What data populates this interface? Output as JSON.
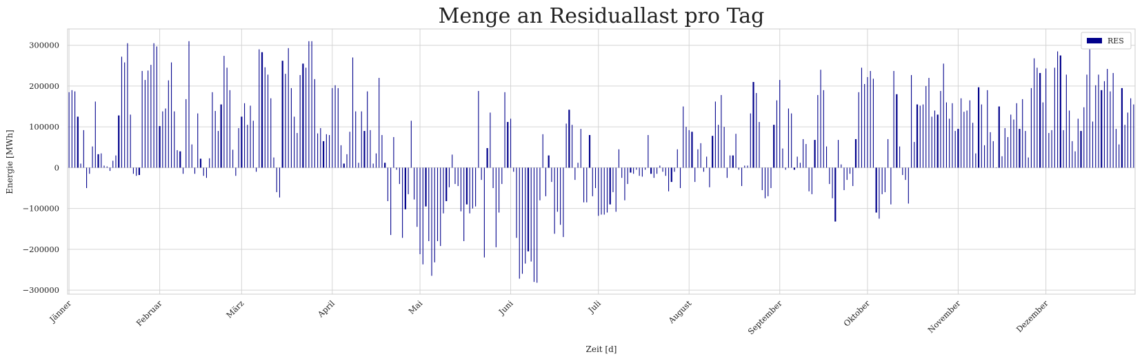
{
  "chart_data": {
    "type": "bar",
    "title": "Menge an Residuallast pro Tag",
    "xlabel": "Zeit [d]",
    "ylabel": "Energie [MWh]",
    "ylim": [
      -310000,
      340000
    ],
    "yticks": [
      -300000,
      -200000,
      -100000,
      0,
      100000,
      200000,
      300000
    ],
    "grid": true,
    "legend_position": "top-right",
    "bar_color": "#00008B",
    "months": [
      {
        "label": "Jänner",
        "start_day": 0
      },
      {
        "label": "Februar",
        "start_day": 31
      },
      {
        "label": "März",
        "start_day": 59
      },
      {
        "label": "April",
        "start_day": 90
      },
      {
        "label": "Mai",
        "start_day": 120
      },
      {
        "label": "Juni",
        "start_day": 151
      },
      {
        "label": "Juli",
        "start_day": 181
      },
      {
        "label": "August",
        "start_day": 212
      },
      {
        "label": "September",
        "start_day": 243
      },
      {
        "label": "Oktober",
        "start_day": 273
      },
      {
        "label": "November",
        "start_day": 304
      },
      {
        "label": "Dezember",
        "start_day": 334
      }
    ],
    "series": [
      {
        "name": "RES",
        "values": [
          185000,
          190000,
          187000,
          125000,
          10000,
          92000,
          -50000,
          -15000,
          52000,
          162000,
          33000,
          35000,
          5000,
          3000,
          -8000,
          17000,
          30000,
          128000,
          272000,
          258000,
          305000,
          130000,
          -15000,
          -20000,
          -18000,
          237000,
          215000,
          238000,
          252000,
          305000,
          297000,
          102000,
          138000,
          145000,
          214000,
          258000,
          138000,
          43000,
          40000,
          -15000,
          168000,
          310000,
          57000,
          -15000,
          133000,
          22000,
          -20000,
          -25000,
          23000,
          185000,
          139000,
          90000,
          155000,
          274000,
          245000,
          190000,
          44000,
          -20000,
          97000,
          125000,
          158000,
          105000,
          152000,
          115000,
          -10000,
          290000,
          283000,
          246000,
          228000,
          170000,
          25000,
          -60000,
          -73000,
          262000,
          230000,
          293000,
          195000,
          125000,
          85000,
          227000,
          255000,
          245000,
          310000,
          310000,
          217000,
          84000,
          97000,
          65000,
          82000,
          80000,
          195000,
          202000,
          195000,
          55000,
          10000,
          33000,
          88000,
          270000,
          138000,
          12000,
          138000,
          90000,
          187000,
          92000,
          10000,
          35000,
          220000,
          80000,
          12000,
          -82000,
          -165000,
          75000,
          -5000,
          -40000,
          -172000,
          -102000,
          -65000,
          115000,
          -78000,
          -145000,
          -212000,
          -237000,
          -95000,
          -180000,
          -265000,
          -232000,
          -180000,
          -192000,
          -112000,
          -82000,
          -48000,
          32000,
          -40000,
          -45000,
          -107000,
          -180000,
          -90000,
          -112000,
          -100000,
          -95000,
          188000,
          -30000,
          -220000,
          48000,
          135000,
          -50000,
          -195000,
          -110000,
          -40000,
          185000,
          112000,
          120000,
          -10000,
          -172000,
          -272000,
          -260000,
          -235000,
          -205000,
          -230000,
          -280000,
          -282000,
          -80000,
          82000,
          -70000,
          30000,
          -35000,
          -162000,
          -108000,
          -140000,
          -170000,
          108000,
          142000,
          105000,
          -30000,
          12000,
          95000,
          -85000,
          -85000,
          80000,
          -70000,
          -50000,
          -118000,
          -115000,
          -115000,
          -110000,
          -90000,
          -60000,
          -108000,
          45000,
          -25000,
          -80000,
          -40000,
          -12000,
          -15000,
          -5000,
          -20000,
          -22000,
          -5000,
          80000,
          -15000,
          -25000,
          -15000,
          5000,
          -10000,
          -20000,
          -58000,
          -35000,
          -10000,
          45000,
          -50000,
          150000,
          100000,
          92000,
          88000,
          -35000,
          45000,
          60000,
          -10000,
          27000,
          -48000,
          78000,
          162000,
          105000,
          178000,
          100000,
          -25000,
          30000,
          30000,
          83000,
          -5000,
          -45000,
          5000,
          5000,
          133000,
          210000,
          183000,
          112000,
          -55000,
          -75000,
          -70000,
          -50000,
          105000,
          165000,
          215000,
          47000,
          -5000,
          145000,
          133000,
          -5000,
          27000,
          12000,
          70000,
          58000,
          -58000,
          -65000,
          68000,
          178000,
          240000,
          190000,
          52000,
          -40000,
          -75000,
          -132000,
          68000,
          8000,
          -55000,
          -30000,
          -15000,
          -45000,
          70000,
          185000,
          245000,
          205000,
          222000,
          237000,
          218000,
          -110000,
          -125000,
          -65000,
          -60000,
          70000,
          -90000,
          237000,
          180000,
          52000,
          -18000,
          -30000,
          -88000,
          227000,
          63000,
          155000,
          152000,
          155000,
          200000,
          220000,
          125000,
          140000,
          130000,
          188000,
          255000,
          160000,
          120000,
          158000,
          90000,
          95000,
          170000,
          137000,
          140000,
          165000,
          110000,
          35000,
          197000,
          155000,
          55000,
          190000,
          87000,
          65000,
          0,
          150000,
          28000,
          97000,
          75000,
          130000,
          118000,
          158000,
          95000,
          168000,
          90000,
          25000,
          195000,
          268000,
          245000,
          232000,
          160000,
          243000,
          85000,
          92000,
          245000,
          285000,
          275000,
          92000,
          228000,
          140000,
          65000,
          40000,
          120000,
          90000,
          148000,
          228000,
          290000,
          113000,
          202000,
          228000,
          190000,
          212000,
          242000,
          187000,
          232000,
          95000,
          57000,
          195000,
          105000,
          135000,
          170000,
          155000
        ]
      }
    ]
  }
}
